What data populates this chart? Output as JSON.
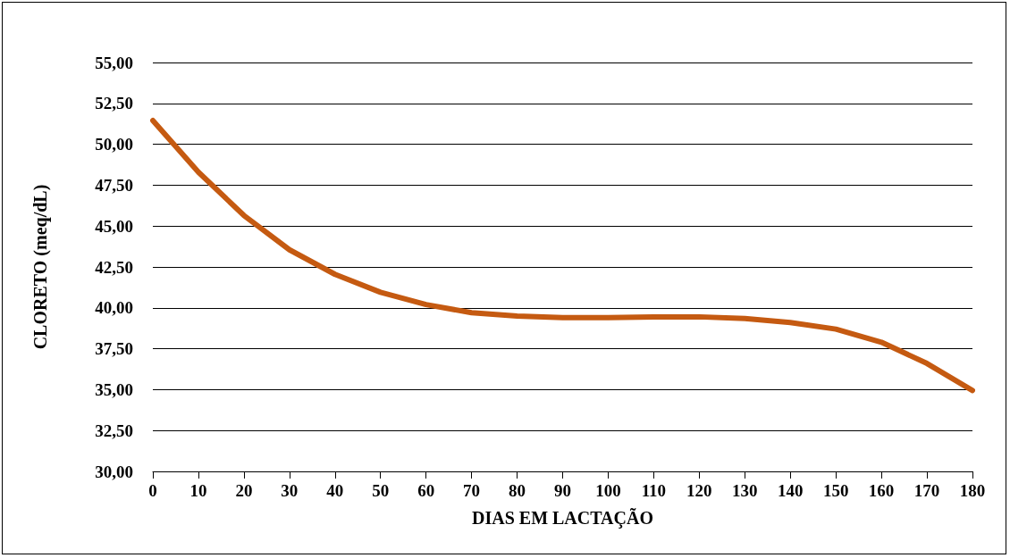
{
  "chart_data": {
    "type": "line",
    "xlabel": "DIAS EM LACTAÇÃO",
    "ylabel": "CLORETO (meq/dL)",
    "x": [
      0,
      10,
      20,
      30,
      40,
      50,
      60,
      70,
      80,
      90,
      100,
      110,
      120,
      130,
      140,
      150,
      160,
      170,
      180
    ],
    "series": [
      {
        "color": "#c55a11",
        "values": [
          51.45,
          48.3,
          45.65,
          43.55,
          42.05,
          40.95,
          40.2,
          39.7,
          39.5,
          39.4,
          39.4,
          39.45,
          39.45,
          39.35,
          39.1,
          38.7,
          37.9,
          36.6,
          34.95
        ]
      }
    ],
    "xlim": [
      0,
      180
    ],
    "xticks": [
      0,
      10,
      20,
      30,
      40,
      50,
      60,
      70,
      80,
      90,
      100,
      110,
      120,
      130,
      140,
      150,
      160,
      170,
      180
    ],
    "ylim": [
      30,
      55
    ],
    "yticks": [
      {
        "value": 30,
        "label": "30,00"
      },
      {
        "value": 32.5,
        "label": "32,50"
      },
      {
        "value": 35,
        "label": "35,00"
      },
      {
        "value": 37.5,
        "label": "37,50"
      },
      {
        "value": 40,
        "label": "40,00"
      },
      {
        "value": 42.5,
        "label": "42,50"
      },
      {
        "value": 45,
        "label": "45,00"
      },
      {
        "value": 47.5,
        "label": "47,50"
      },
      {
        "value": 50,
        "label": "50,00"
      },
      {
        "value": 52.5,
        "label": "52,50"
      },
      {
        "value": 55,
        "label": "55,00"
      }
    ],
    "grid": "y",
    "marker": "none",
    "line_style": "solid"
  }
}
